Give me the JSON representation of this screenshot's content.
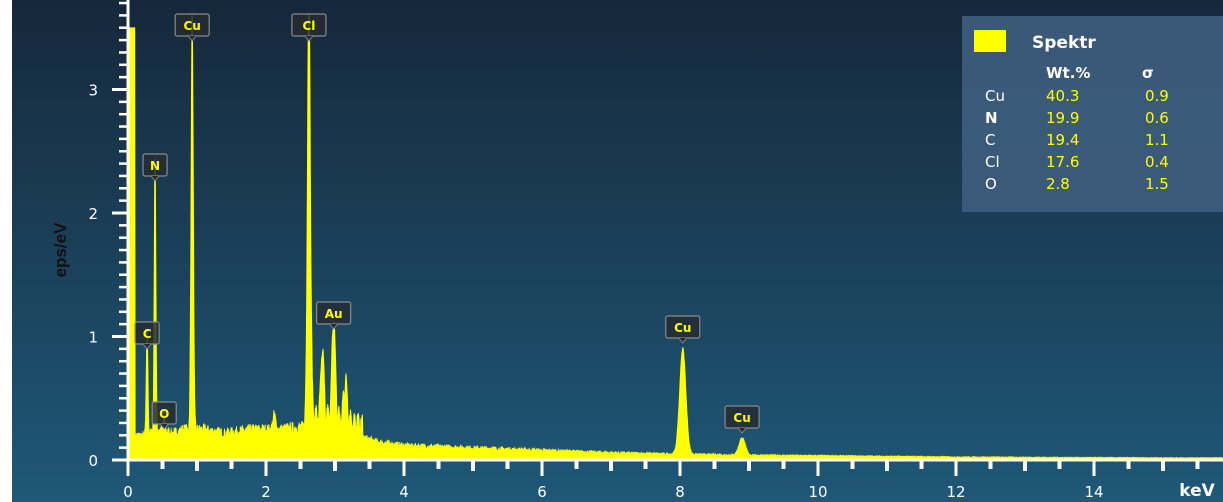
{
  "colors": {
    "background_top": "#16283a",
    "background_bottom": "#1f5878",
    "spectrum": "#ffff00",
    "axis": "#ffffff",
    "label_box_border": "#8a8a8a",
    "label_box_fill": "#242b33",
    "legend_fill": "#3e5d7e"
  },
  "chart_data": {
    "type": "area",
    "xlabel": "keV",
    "ylabel": "eps/eV",
    "xlim": [
      0,
      15
    ],
    "ylim": [
      0,
      3.5
    ],
    "x_ticks": [
      0,
      2,
      4,
      6,
      8,
      10,
      12,
      14
    ],
    "y_ticks": [
      0,
      1,
      2,
      3
    ],
    "background_level": [
      [
        0.25,
        0.2
      ],
      [
        0.45,
        0.25
      ],
      [
        0.65,
        0.22
      ],
      [
        0.8,
        0.25
      ],
      [
        1.1,
        0.25
      ],
      [
        1.4,
        0.22
      ],
      [
        1.8,
        0.25
      ],
      [
        2.2,
        0.25
      ],
      [
        2.5,
        0.27
      ],
      [
        3.2,
        0.22
      ],
      [
        3.6,
        0.15
      ],
      [
        4.0,
        0.12
      ],
      [
        5.0,
        0.1
      ],
      [
        6.0,
        0.08
      ],
      [
        7.0,
        0.06
      ],
      [
        7.8,
        0.05
      ],
      [
        9.0,
        0.04
      ],
      [
        10.0,
        0.035
      ],
      [
        12.0,
        0.025
      ],
      [
        14.0,
        0.02
      ],
      [
        15.0,
        0.018
      ]
    ],
    "peaks": [
      {
        "element": "C",
        "center": 0.277,
        "height": 0.88,
        "width": 0.012
      },
      {
        "element": "N",
        "center": 0.392,
        "height": 2.25,
        "width": 0.012
      },
      {
        "element": "O",
        "center": 0.525,
        "height": 0.15,
        "width": 0.012
      },
      {
        "element": "Cu",
        "center": 0.93,
        "height": 3.5,
        "width": 0.016
      },
      {
        "element": "Cl",
        "center": 2.622,
        "height": 3.5,
        "width": 0.022
      },
      {
        "element": "Cl",
        "center": 2.816,
        "height": 0.55,
        "width": 0.022
      },
      {
        "element": "Au",
        "center": 2.12,
        "height": 0.12,
        "width": 0.02
      },
      {
        "element": "Au",
        "center": 2.98,
        "height": 0.8,
        "width": 0.025
      },
      {
        "element": "Au",
        "center": 3.15,
        "height": 0.32,
        "width": 0.025
      },
      {
        "element": "Cu",
        "center": 8.04,
        "height": 0.86,
        "width": 0.045
      },
      {
        "element": "Cu",
        "center": 8.9,
        "height": 0.14,
        "width": 0.045
      }
    ],
    "peak_labels": [
      {
        "text": "C",
        "x": 0.277,
        "y": 0.88
      },
      {
        "text": "N",
        "x": 0.392,
        "y": 2.25
      },
      {
        "text": "O",
        "x": 0.525,
        "y": 0.25
      },
      {
        "text": "Cu",
        "x": 0.93,
        "y": 3.5
      },
      {
        "text": "Cl",
        "x": 2.622,
        "y": 3.5
      },
      {
        "text": "Au",
        "x": 2.98,
        "y": 1.0
      },
      {
        "text": "Cu",
        "x": 8.04,
        "y": 0.9
      },
      {
        "text": "Cu",
        "x": 8.9,
        "y": 0.2
      }
    ],
    "legend": {
      "title": "Spektr",
      "columns": [
        "Wt.%",
        "σ"
      ],
      "rows": [
        {
          "element": "Cu",
          "wt": "40.3",
          "sigma": "0.9"
        },
        {
          "element": "N",
          "wt": "19.9",
          "sigma": "0.6"
        },
        {
          "element": "C",
          "wt": "19.4",
          "sigma": "1.1"
        },
        {
          "element": "Cl",
          "wt": "17.6",
          "sigma": "0.4"
        },
        {
          "element": "O",
          "wt": "2.8",
          "sigma": "1.5"
        }
      ]
    }
  }
}
